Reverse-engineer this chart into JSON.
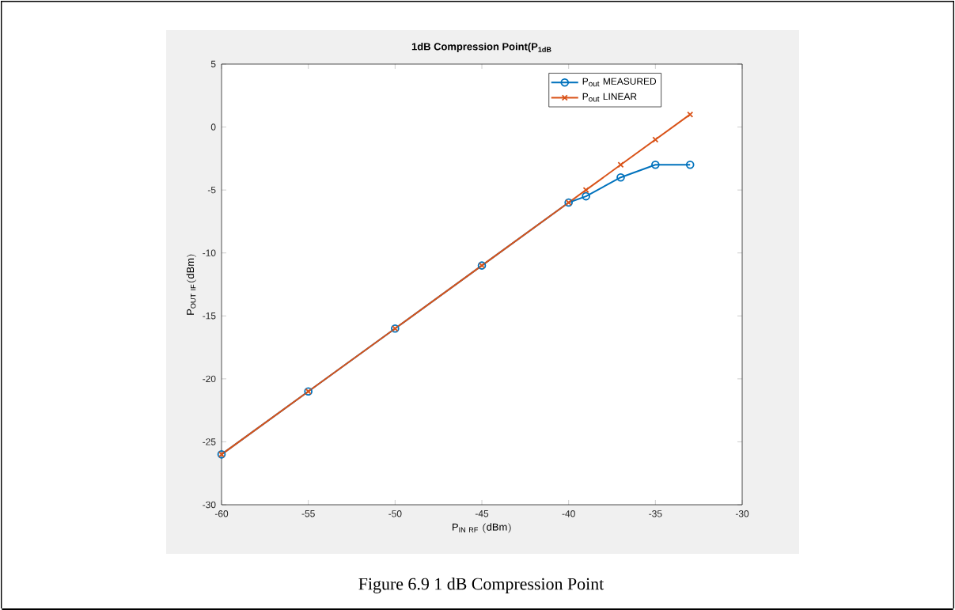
{
  "chart_data": {
    "type": "line",
    "title": "1dB Compression Point(P$_{1dB}$",
    "xlabel": "\\mathrm{P}_{\\mathrm{IN\\ RF}}\\mathrm{\\ (dBm)}",
    "ylabel": "\\mathrm{P}_{\\mathrm{OUT\\ IF}}\\mathrm{(dBm)}",
    "x": [
      -60,
      -55,
      -50,
      -45,
      -40,
      -39,
      -37,
      -35,
      -33
    ],
    "series": [
      {
        "name": "P$_{out}$ MEASURED",
        "color": "#0072bd",
        "marker": "circle",
        "values": [
          -26,
          -21,
          -16,
          -11,
          -6,
          -5.5,
          -4,
          -3,
          -3
        ]
      },
      {
        "name": "P$_{out}$ LINEAR",
        "color": "#d95319",
        "marker": "cross",
        "values": [
          -26,
          -21,
          -16,
          -11,
          -6,
          -5,
          -3,
          -1,
          1
        ]
      }
    ],
    "xlim": [
      -60,
      -30
    ],
    "xticks": [
      -60,
      -55,
      -50,
      -45,
      -40,
      -35,
      -30
    ],
    "ylim": [
      -30,
      5
    ],
    "yticks": [
      -30,
      -25,
      -20,
      -15,
      -10,
      -5,
      0,
      5
    ],
    "grid": false,
    "legend": "top right",
    "line_style": "solid",
    "annotations": [
      "Figure 6.9 1 dB Compression Point"
    ]
  }
}
